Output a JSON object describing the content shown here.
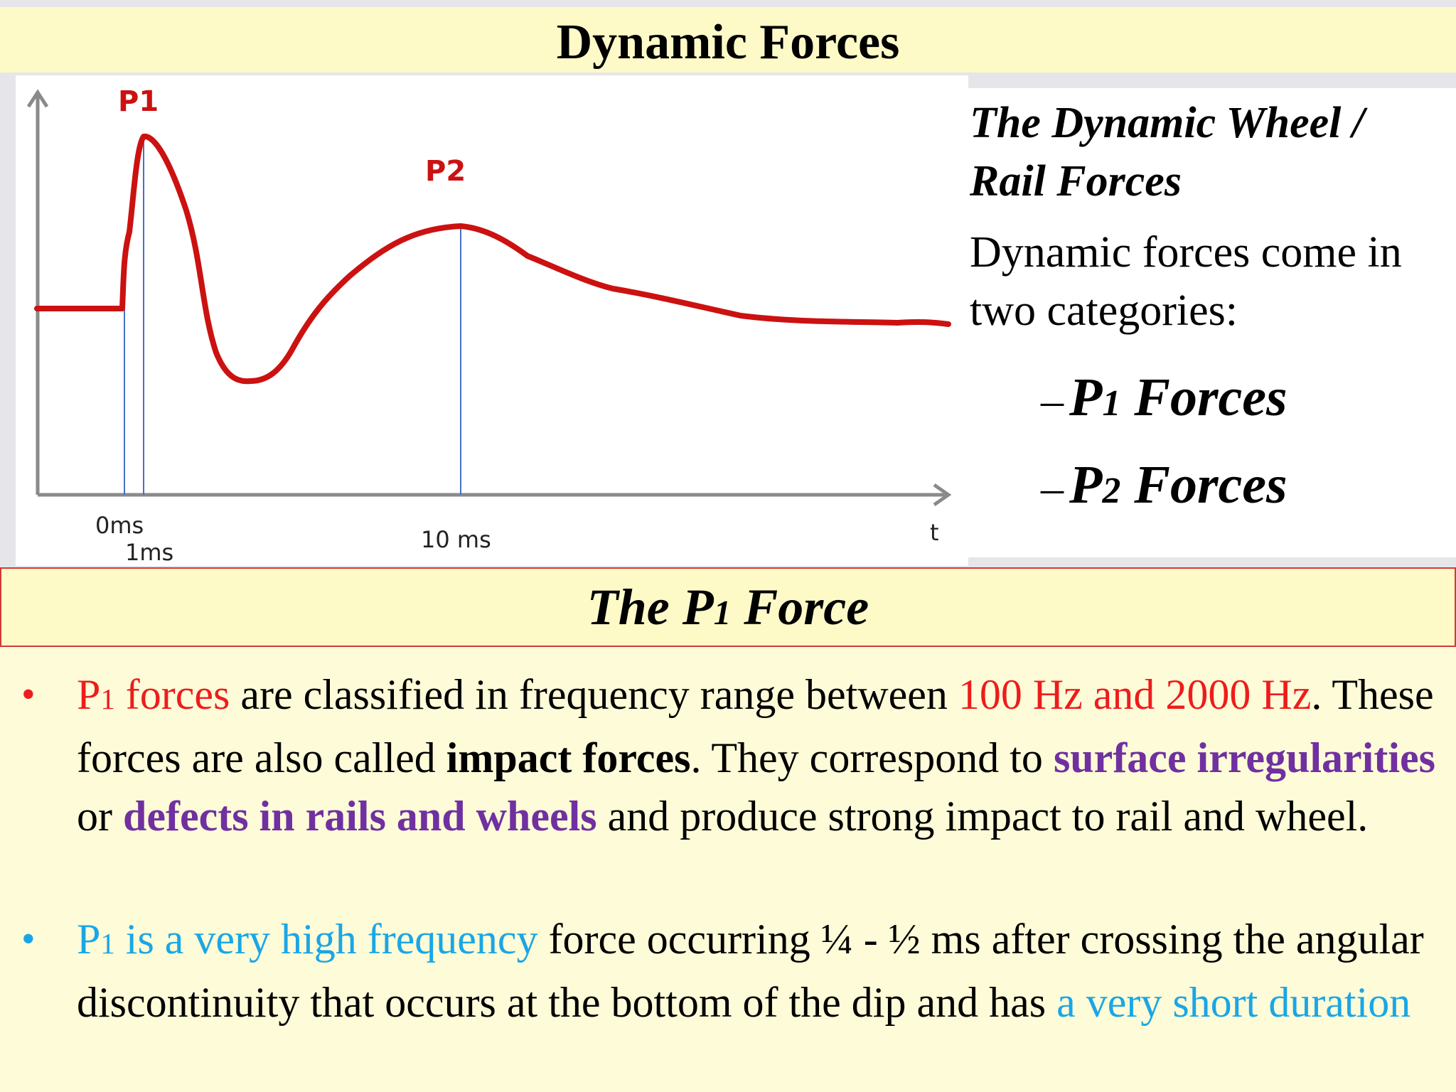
{
  "slide": {
    "title": "Dynamic Forces",
    "subtitle_main": "The P",
    "subtitle_sub": "1",
    "subtitle_rest": " Force"
  },
  "chart": {
    "p1_label": "P1",
    "p2_label": "P2",
    "x_axis_label": "t",
    "tick_labels": [
      "0ms",
      "1ms",
      "10 ms"
    ],
    "line_color": "#cc1111",
    "axis_color": "#8a8a8a",
    "marker_line_color": "#4472c4"
  },
  "side": {
    "heading": "The Dynamic Wheel / Rail Forces",
    "text": "Dynamic forces come in two categories:",
    "items": [
      {
        "dash": "–",
        "main": "P",
        "sub": "1",
        "rest": " Forces"
      },
      {
        "dash": "–",
        "main": "P",
        "sub": "2",
        "rest": " Forces"
      }
    ]
  },
  "bullets": {
    "b1": {
      "dot": "•",
      "p1_main": "P",
      "p1_sub": "1",
      "p1_rest": " forces",
      "t1": " are classified in frequency range between ",
      "freq": "100 Hz and 2000 Hz",
      "t2": ". These forces are also called ",
      "impact": "impact forces",
      "t3": ". They correspond to ",
      "surface": "surface irregularities",
      "t4": " or ",
      "defects": "defects in rails and wheels",
      "t5": " and produce strong impact to rail and wheel."
    },
    "b2": {
      "dot": "•",
      "p1_main": "P",
      "p1_sub": "1",
      "p1_rest": " is a very high frequency",
      "t1": " force occurring ¼ - ½ ms after crossing the angular discontinuity that occurs at the bottom of the dip and has ",
      "short": "a very short duration"
    }
  },
  "colors": {
    "title_bg": "#fdfac8",
    "content_bg": "#fdfbd8",
    "red": "#ee1c1c",
    "purple": "#7030a0",
    "cyan": "#1aa6e6"
  }
}
